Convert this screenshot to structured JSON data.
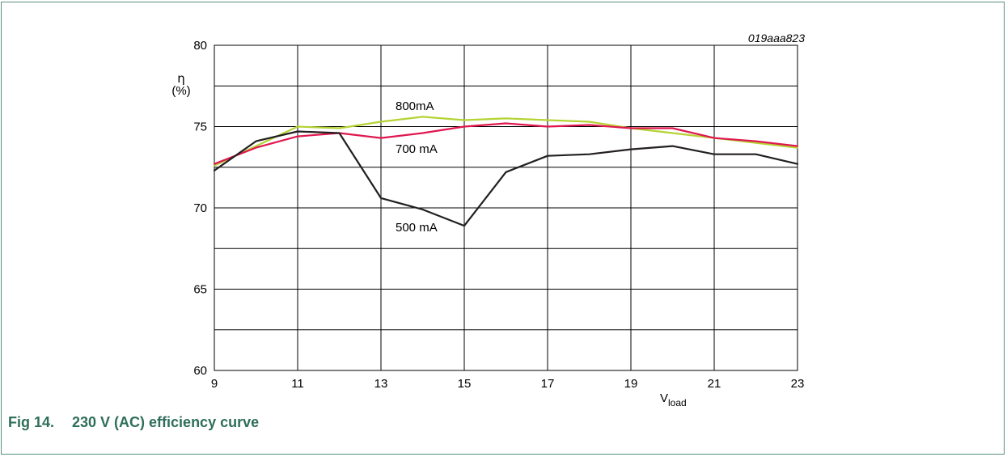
{
  "figure": {
    "id_label": "019aaa823",
    "caption_number": "Fig 14.",
    "caption_text": "230 V (AC) efficiency curve"
  },
  "colors": {
    "frame": "#5a8f7b",
    "caption": "#2e6e5a",
    "grid": "#000000",
    "series_500": "#231f20",
    "series_700": "#e0174f",
    "series_800": "#b5d334"
  },
  "chart_data": {
    "type": "line",
    "ylabel_symbol": "η",
    "ylabel_unit": "(%)",
    "xlabel_main": "V",
    "xlabel_sub": "load",
    "xlim": [
      9,
      23
    ],
    "ylim": [
      60,
      80
    ],
    "x_ticks": [
      9,
      11,
      13,
      15,
      17,
      19,
      21,
      23
    ],
    "y_ticks": [
      60,
      65,
      70,
      75,
      80
    ],
    "grid": true,
    "series": [
      {
        "name": "800mA",
        "color_key": "series_800",
        "x": [
          9,
          10,
          11,
          12,
          13,
          14,
          15,
          16,
          17,
          18,
          19,
          20,
          21,
          22,
          23
        ],
        "y": [
          72.6,
          73.8,
          75.0,
          74.9,
          75.3,
          75.6,
          75.4,
          75.5,
          75.4,
          75.3,
          74.9,
          74.6,
          74.3,
          74.0,
          73.7
        ]
      },
      {
        "name": "700 mA",
        "color_key": "series_700",
        "x": [
          9,
          10,
          11,
          12,
          13,
          14,
          15,
          16,
          17,
          18,
          19,
          20,
          21,
          22,
          23
        ],
        "y": [
          72.7,
          73.7,
          74.4,
          74.6,
          74.3,
          74.6,
          75.0,
          75.2,
          75.0,
          75.1,
          74.9,
          74.9,
          74.3,
          74.1,
          73.8
        ]
      },
      {
        "name": "500 mA",
        "color_key": "series_500",
        "x": [
          9,
          10,
          11,
          12,
          13,
          14,
          15,
          16,
          17,
          18,
          19,
          20,
          21,
          22,
          23
        ],
        "y": [
          72.3,
          74.1,
          74.7,
          74.6,
          70.6,
          69.9,
          68.9,
          72.2,
          73.2,
          73.3,
          73.6,
          73.8,
          73.3,
          73.3,
          72.7
        ]
      }
    ]
  }
}
